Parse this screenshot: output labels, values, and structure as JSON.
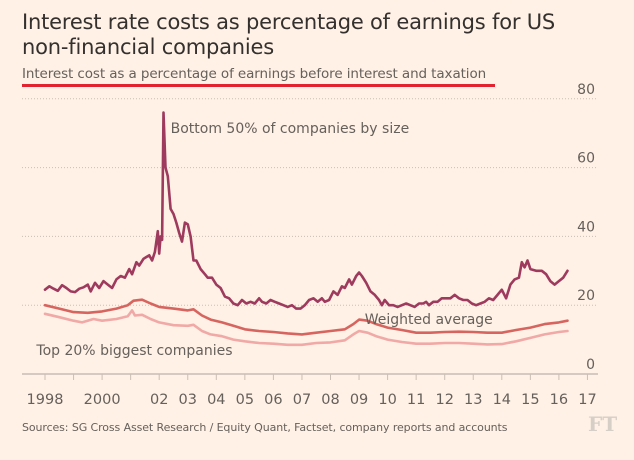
{
  "chart_data": {
    "type": "line",
    "title": "Interest rate costs as percentage of earnings for US non-financial companies",
    "subtitle": "Interest cost as a percentage of earnings before interest and taxation",
    "xlabel": "",
    "ylabel": "",
    "ylim": [
      0,
      80
    ],
    "xlim": [
      1998,
      2017.3
    ],
    "y_ticks": [
      0,
      20,
      40,
      60,
      80
    ],
    "y_tick_labels": [
      "0",
      "20",
      "40",
      "60",
      "80"
    ],
    "y_axis_side": "right",
    "grid": "horizontal dotted",
    "x_ticks": [
      1998,
      1999,
      2000,
      2001,
      2002,
      2003,
      2004,
      2005,
      2006,
      2007,
      2008,
      2009,
      2010,
      2011,
      2012,
      2013,
      2014,
      2015,
      2016,
      2017
    ],
    "x_tick_labels": [
      {
        "year": 1998,
        "label": "1998"
      },
      {
        "year": 2000,
        "label": "2000"
      },
      {
        "year": 2002,
        "label": "02"
      },
      {
        "year": 2003,
        "label": "03"
      },
      {
        "year": 2004,
        "label": "04"
      },
      {
        "year": 2005,
        "label": "05"
      },
      {
        "year": 2006,
        "label": "06"
      },
      {
        "year": 2007,
        "label": "07"
      },
      {
        "year": 2008,
        "label": "08"
      },
      {
        "year": 2009,
        "label": "09"
      },
      {
        "year": 2010,
        "label": "10"
      },
      {
        "year": 2011,
        "label": "11"
      },
      {
        "year": 2012,
        "label": "12"
      },
      {
        "year": 2013,
        "label": "13"
      },
      {
        "year": 2014,
        "label": "14"
      },
      {
        "year": 2015,
        "label": "15"
      },
      {
        "year": 2016,
        "label": "16"
      },
      {
        "year": 2017,
        "label": "17"
      }
    ],
    "series": [
      {
        "name": "Bottom 50% of companies by size",
        "color": "#9e3a5e",
        "label_position": {
          "x": 2002.4,
          "y": 70
        },
        "points": [
          [
            1998.0,
            24.5
          ],
          [
            1998.15,
            25.5
          ],
          [
            1998.3,
            24.8
          ],
          [
            1998.45,
            24.2
          ],
          [
            1998.6,
            25.8
          ],
          [
            1998.75,
            25.0
          ],
          [
            1998.9,
            24.0
          ],
          [
            1999.05,
            23.8
          ],
          [
            1999.2,
            24.8
          ],
          [
            1999.35,
            25.2
          ],
          [
            1999.5,
            26.0
          ],
          [
            1999.6,
            24.0
          ],
          [
            1999.75,
            26.5
          ],
          [
            1999.9,
            25.0
          ],
          [
            2000.05,
            27.0
          ],
          [
            2000.2,
            26.0
          ],
          [
            2000.35,
            25.0
          ],
          [
            2000.5,
            27.5
          ],
          [
            2000.65,
            28.5
          ],
          [
            2000.8,
            28.0
          ],
          [
            2000.95,
            30.5
          ],
          [
            2001.05,
            29.0
          ],
          [
            2001.2,
            32.5
          ],
          [
            2001.3,
            31.5
          ],
          [
            2001.45,
            33.5
          ],
          [
            2001.55,
            34.0
          ],
          [
            2001.65,
            34.5
          ],
          [
            2001.75,
            33.0
          ],
          [
            2001.85,
            35.5
          ],
          [
            2001.95,
            41.5
          ],
          [
            2002.0,
            35.0
          ],
          [
            2002.05,
            40.0
          ],
          [
            2002.1,
            39.0
          ],
          [
            2002.15,
            76.0
          ],
          [
            2002.22,
            60.0
          ],
          [
            2002.3,
            57.5
          ],
          [
            2002.4,
            48.0
          ],
          [
            2002.5,
            46.5
          ],
          [
            2002.6,
            44.0
          ],
          [
            2002.7,
            41.0
          ],
          [
            2002.8,
            38.5
          ],
          [
            2002.9,
            44.0
          ],
          [
            2003.0,
            43.5
          ],
          [
            2003.1,
            40.0
          ],
          [
            2003.2,
            33.0
          ],
          [
            2003.3,
            33.0
          ],
          [
            2003.45,
            30.5
          ],
          [
            2003.6,
            29.0
          ],
          [
            2003.7,
            28.0
          ],
          [
            2003.85,
            28.0
          ],
          [
            2004.0,
            26.0
          ],
          [
            2004.15,
            25.0
          ],
          [
            2004.3,
            22.5
          ],
          [
            2004.45,
            22.0
          ],
          [
            2004.6,
            20.5
          ],
          [
            2004.75,
            20.0
          ],
          [
            2004.9,
            21.5
          ],
          [
            2005.05,
            20.5
          ],
          [
            2005.2,
            21.0
          ],
          [
            2005.35,
            20.5
          ],
          [
            2005.5,
            22.0
          ],
          [
            2005.6,
            21.0
          ],
          [
            2005.75,
            20.5
          ],
          [
            2005.9,
            21.5
          ],
          [
            2006.05,
            21.0
          ],
          [
            2006.2,
            20.5
          ],
          [
            2006.35,
            20.0
          ],
          [
            2006.5,
            19.5
          ],
          [
            2006.65,
            20.0
          ],
          [
            2006.8,
            19.0
          ],
          [
            2006.95,
            19.0
          ],
          [
            2007.1,
            20.0
          ],
          [
            2007.25,
            21.5
          ],
          [
            2007.4,
            22.0
          ],
          [
            2007.55,
            21.0
          ],
          [
            2007.7,
            22.0
          ],
          [
            2007.8,
            21.0
          ],
          [
            2007.95,
            21.5
          ],
          [
            2008.1,
            24.0
          ],
          [
            2008.25,
            23.0
          ],
          [
            2008.4,
            25.5
          ],
          [
            2008.5,
            25.0
          ],
          [
            2008.65,
            27.5
          ],
          [
            2008.75,
            26.0
          ],
          [
            2008.9,
            28.5
          ],
          [
            2009.0,
            29.5
          ],
          [
            2009.1,
            28.5
          ],
          [
            2009.25,
            26.5
          ],
          [
            2009.4,
            24.0
          ],
          [
            2009.55,
            23.0
          ],
          [
            2009.7,
            21.5
          ],
          [
            2009.8,
            20.0
          ],
          [
            2009.9,
            21.5
          ],
          [
            2010.05,
            20.0
          ],
          [
            2010.2,
            20.0
          ],
          [
            2010.35,
            19.5
          ],
          [
            2010.5,
            20.0
          ],
          [
            2010.65,
            20.5
          ],
          [
            2010.8,
            20.0
          ],
          [
            2010.95,
            19.5
          ],
          [
            2011.1,
            20.5
          ],
          [
            2011.25,
            20.5
          ],
          [
            2011.35,
            21.0
          ],
          [
            2011.45,
            20.0
          ],
          [
            2011.6,
            21.0
          ],
          [
            2011.75,
            21.0
          ],
          [
            2011.9,
            22.0
          ],
          [
            2012.05,
            22.0
          ],
          [
            2012.2,
            22.0
          ],
          [
            2012.35,
            23.0
          ],
          [
            2012.5,
            22.0
          ],
          [
            2012.65,
            21.5
          ],
          [
            2012.8,
            21.5
          ],
          [
            2012.95,
            20.5
          ],
          [
            2013.1,
            20.0
          ],
          [
            2013.25,
            20.5
          ],
          [
            2013.4,
            21.0
          ],
          [
            2013.55,
            22.0
          ],
          [
            2013.7,
            21.5
          ],
          [
            2013.85,
            23.0
          ],
          [
            2014.0,
            24.5
          ],
          [
            2014.15,
            22.0
          ],
          [
            2014.3,
            26.0
          ],
          [
            2014.45,
            27.5
          ],
          [
            2014.6,
            28.0
          ],
          [
            2014.7,
            32.5
          ],
          [
            2014.8,
            31.0
          ],
          [
            2014.9,
            33.0
          ],
          [
            2015.0,
            30.5
          ],
          [
            2015.2,
            30.0
          ],
          [
            2015.4,
            30.0
          ],
          [
            2015.55,
            29.0
          ],
          [
            2015.7,
            27.0
          ],
          [
            2015.85,
            26.0
          ],
          [
            2016.0,
            27.0
          ],
          [
            2016.15,
            28.0
          ],
          [
            2016.3,
            30.0
          ]
        ]
      },
      {
        "name": "Weighted average",
        "color": "#d7655f",
        "label_position": {
          "x": 2009.2,
          "y": 14.5
        },
        "points": [
          [
            1998.0,
            20.0
          ],
          [
            1998.5,
            19.0
          ],
          [
            1999.0,
            18.0
          ],
          [
            1999.5,
            17.8
          ],
          [
            2000.0,
            18.2
          ],
          [
            2000.5,
            19.0
          ],
          [
            2000.9,
            20.0
          ],
          [
            2001.1,
            21.3
          ],
          [
            2001.4,
            21.6
          ],
          [
            2001.7,
            20.5
          ],
          [
            2002.0,
            19.5
          ],
          [
            2002.5,
            19.0
          ],
          [
            2003.0,
            18.5
          ],
          [
            2003.2,
            18.8
          ],
          [
            2003.5,
            17.0
          ],
          [
            2003.8,
            15.8
          ],
          [
            2004.2,
            15.0
          ],
          [
            2004.6,
            14.0
          ],
          [
            2005.0,
            13.0
          ],
          [
            2005.5,
            12.5
          ],
          [
            2006.0,
            12.2
          ],
          [
            2006.5,
            11.8
          ],
          [
            2007.0,
            11.5
          ],
          [
            2007.5,
            12.0
          ],
          [
            2008.0,
            12.5
          ],
          [
            2008.5,
            13.0
          ],
          [
            2008.8,
            14.5
          ],
          [
            2009.0,
            15.8
          ],
          [
            2009.3,
            15.5
          ],
          [
            2009.6,
            14.5
          ],
          [
            2010.0,
            13.5
          ],
          [
            2010.5,
            12.8
          ],
          [
            2011.0,
            12.0
          ],
          [
            2011.5,
            12.0
          ],
          [
            2012.0,
            12.2
          ],
          [
            2012.5,
            12.3
          ],
          [
            2013.0,
            12.2
          ],
          [
            2013.5,
            12.0
          ],
          [
            2014.0,
            12.0
          ],
          [
            2014.5,
            12.8
          ],
          [
            2015.0,
            13.5
          ],
          [
            2015.5,
            14.5
          ],
          [
            2016.0,
            15.0
          ],
          [
            2016.3,
            15.5
          ]
        ]
      },
      {
        "name": "Top 20% biggest companies",
        "color": "#f0a9a6",
        "label_position": {
          "x": 1997.7,
          "y": 5.5
        },
        "points": [
          [
            1998.0,
            17.5
          ],
          [
            1998.5,
            16.5
          ],
          [
            1999.0,
            15.5
          ],
          [
            1999.3,
            15.0
          ],
          [
            1999.7,
            16.0
          ],
          [
            2000.0,
            15.5
          ],
          [
            2000.5,
            16.0
          ],
          [
            2000.9,
            16.8
          ],
          [
            2001.05,
            18.5
          ],
          [
            2001.15,
            17.0
          ],
          [
            2001.4,
            17.2
          ],
          [
            2001.7,
            16.0
          ],
          [
            2002.0,
            15.0
          ],
          [
            2002.5,
            14.2
          ],
          [
            2003.0,
            14.0
          ],
          [
            2003.2,
            14.3
          ],
          [
            2003.5,
            12.5
          ],
          [
            2003.8,
            11.5
          ],
          [
            2004.2,
            11.0
          ],
          [
            2004.6,
            10.0
          ],
          [
            2005.0,
            9.5
          ],
          [
            2005.5,
            9.0
          ],
          [
            2006.0,
            8.8
          ],
          [
            2006.5,
            8.5
          ],
          [
            2007.0,
            8.5
          ],
          [
            2007.5,
            9.0
          ],
          [
            2008.0,
            9.2
          ],
          [
            2008.5,
            9.8
          ],
          [
            2008.8,
            11.5
          ],
          [
            2009.0,
            12.5
          ],
          [
            2009.3,
            12.0
          ],
          [
            2009.6,
            11.0
          ],
          [
            2010.0,
            10.0
          ],
          [
            2010.5,
            9.3
          ],
          [
            2011.0,
            8.8
          ],
          [
            2011.5,
            8.8
          ],
          [
            2012.0,
            9.0
          ],
          [
            2012.5,
            9.0
          ],
          [
            2013.0,
            8.8
          ],
          [
            2013.5,
            8.6
          ],
          [
            2014.0,
            8.7
          ],
          [
            2014.5,
            9.5
          ],
          [
            2015.0,
            10.5
          ],
          [
            2015.5,
            11.5
          ],
          [
            2016.0,
            12.2
          ],
          [
            2016.3,
            12.5
          ]
        ]
      }
    ],
    "source": "Sources: SG Cross Asset Research / Equity Quant, Factset, company reports and accounts"
  },
  "header": {
    "title": "Interest rate costs as percentage of earnings for US non-financial companies",
    "subtitle": "Interest cost as a percentage of earnings before interest and taxation"
  },
  "footer": {
    "source": "Sources: SG Cross Asset Research / Equity Quant, Factset, company reports and accounts",
    "logo": "FT"
  },
  "colors": {
    "background": "#fff1e5",
    "accent_rule": "#e3222f",
    "bottom50": "#9e3a5e",
    "weighted": "#d7655f",
    "top20": "#f0a9a6"
  }
}
